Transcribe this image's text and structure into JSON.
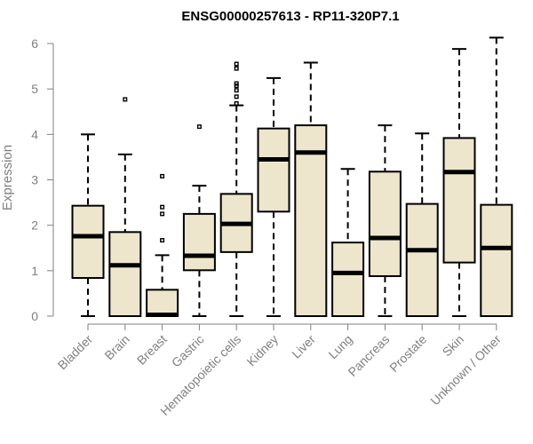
{
  "chart_data": {
    "type": "boxplot",
    "title": "ENSG00000257613 - RP11-320P7.1",
    "xlabel": "",
    "ylabel": "Expression",
    "ylim": [
      0,
      6.2
    ],
    "yticks": [
      0,
      1,
      2,
      3,
      4,
      5,
      6
    ],
    "categories": [
      "Bladder",
      "Brain",
      "Breast",
      "Gastric",
      "Hematopoietic cells",
      "Kidney",
      "Liver",
      "Lung",
      "Pancreas",
      "Prostate",
      "Skin",
      "Unknown / Other"
    ],
    "box_fill": "#ede6cd",
    "axis_color": "#808080",
    "boxes": [
      {
        "min": 0,
        "q1": 0.84,
        "median": 1.76,
        "q3": 2.43,
        "max": 4.0,
        "outliers": []
      },
      {
        "min": 0,
        "q1": 0,
        "median": 1.12,
        "q3": 1.85,
        "max": 3.56,
        "outliers": [
          4.77
        ]
      },
      {
        "min": 0,
        "q1": 0,
        "median": 0.03,
        "q3": 0.58,
        "max": 1.34,
        "outliers": [
          1.67,
          2.25,
          2.4,
          3.08
        ]
      },
      {
        "min": 0,
        "q1": 1.01,
        "median": 1.33,
        "q3": 2.25,
        "max": 2.87,
        "outliers": [
          4.17
        ]
      },
      {
        "min": 0,
        "q1": 1.41,
        "median": 2.03,
        "q3": 2.69,
        "max": 4.64,
        "outliers": [
          4.68,
          4.83,
          4.97,
          5.07,
          5.12,
          5.45,
          5.55
        ]
      },
      {
        "min": 0,
        "q1": 2.3,
        "median": 3.45,
        "q3": 4.13,
        "max": 5.24,
        "outliers": []
      },
      {
        "min": 0,
        "q1": 0,
        "median": 3.6,
        "q3": 4.2,
        "max": 5.58,
        "outliers": []
      },
      {
        "min": 0,
        "q1": 0,
        "median": 0.95,
        "q3": 1.62,
        "max": 3.24,
        "outliers": []
      },
      {
        "min": 0,
        "q1": 0.88,
        "median": 1.72,
        "q3": 3.18,
        "max": 4.2,
        "outliers": []
      },
      {
        "min": 0,
        "q1": 0,
        "median": 1.45,
        "q3": 2.47,
        "max": 4.02,
        "outliers": []
      },
      {
        "min": 0,
        "q1": 1.18,
        "median": 3.17,
        "q3": 3.92,
        "max": 5.88,
        "outliers": []
      },
      {
        "min": 0,
        "q1": 0,
        "median": 1.5,
        "q3": 2.45,
        "max": 6.13,
        "outliers": []
      }
    ]
  }
}
